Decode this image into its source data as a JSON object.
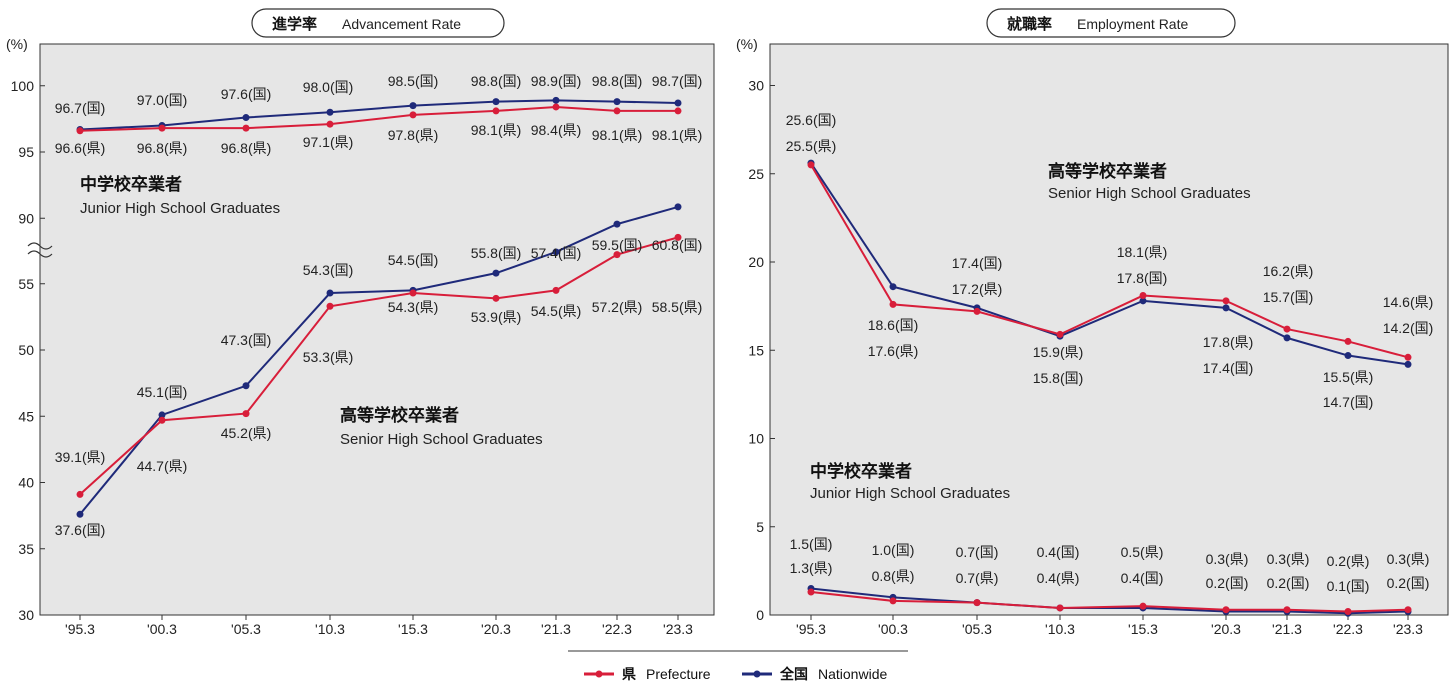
{
  "legend": {
    "prefecture": {
      "jp": "県",
      "en": "Prefecture",
      "color": "#d81e3a"
    },
    "nationwide": {
      "jp": "全国",
      "en": "Nationwide",
      "color": "#1f2a7a"
    }
  },
  "chart_data": [
    {
      "type": "line",
      "title": "進学率",
      "subtitle": "Advancement Rate",
      "unit": "(%)",
      "x": [
        "'95.3",
        "'00.3",
        "'05.3",
        "'10.3",
        "'15.3",
        "'20.3",
        "'21.3",
        "'22.3",
        "'23.3"
      ],
      "y_ticks": [
        30,
        35,
        40,
        45,
        50,
        55,
        90,
        95,
        100
      ],
      "axis_break": "between 55 and 90",
      "groups": [
        {
          "label_jp": "中学校卒業者",
          "label_en": "Junior High School Graduates",
          "series": [
            {
              "name": "全国",
              "values": [
                96.7,
                97.0,
                97.6,
                98.0,
                98.5,
                98.8,
                98.9,
                98.8,
                98.7
              ]
            },
            {
              "name": "県",
              "values": [
                96.6,
                96.8,
                96.8,
                97.1,
                97.8,
                98.1,
                98.4,
                98.1,
                98.1
              ]
            }
          ]
        },
        {
          "label_jp": "高等学校卒業者",
          "label_en": "Senior High School Graduates",
          "series": [
            {
              "name": "全国",
              "values": [
                37.6,
                45.1,
                47.3,
                54.3,
                54.5,
                55.8,
                57.4,
                59.5,
                60.8
              ]
            },
            {
              "name": "県",
              "values": [
                39.1,
                44.7,
                45.2,
                53.3,
                54.3,
                53.9,
                54.5,
                57.2,
                58.5
              ]
            }
          ]
        }
      ],
      "labels": [
        {
          "t": "96.7(国)"
        },
        {
          "t": "97.0(国)"
        },
        {
          "t": "97.6(国)"
        },
        {
          "t": "98.0(国)"
        },
        {
          "t": "98.5(国)"
        },
        {
          "t": "98.8(国)"
        },
        {
          "t": "98.9(国)"
        },
        {
          "t": "98.8(国)"
        },
        {
          "t": "98.7(国)"
        },
        {
          "t": "96.6(県)"
        },
        {
          "t": "96.8(県)"
        },
        {
          "t": "96.8(県)"
        },
        {
          "t": "97.1(県)"
        },
        {
          "t": "97.8(県)"
        },
        {
          "t": "98.1(県)"
        },
        {
          "t": "98.4(県)"
        },
        {
          "t": "98.1(県)"
        },
        {
          "t": "98.1(県)"
        },
        {
          "t": "54.3(国)"
        },
        {
          "t": "54.5(国)"
        },
        {
          "t": "55.8(国)"
        },
        {
          "t": "57.4(国)"
        },
        {
          "t": "59.5(国)"
        },
        {
          "t": "60.8(国)"
        },
        {
          "t": "54.3(県)"
        },
        {
          "t": "53.9(県)"
        },
        {
          "t": "54.5(県)"
        },
        {
          "t": "57.2(県)"
        },
        {
          "t": "58.5(県)"
        },
        {
          "t": "47.3(国)"
        },
        {
          "t": "53.3(県)"
        },
        {
          "t": "45.1(国)"
        },
        {
          "t": "45.2(県)"
        },
        {
          "t": "39.1(県)"
        },
        {
          "t": "44.7(県)"
        },
        {
          "t": "37.6(国)"
        }
      ]
    },
    {
      "type": "line",
      "title": "就職率",
      "subtitle": "Employment Rate",
      "unit": "(%)",
      "x": [
        "'95.3",
        "'00.3",
        "'05.3",
        "'10.3",
        "'15.3",
        "'20.3",
        "'21.3",
        "'22.3",
        "'23.3"
      ],
      "ylim": [
        0,
        30
      ],
      "y_ticks": [
        0,
        5,
        10,
        15,
        20,
        25,
        30
      ],
      "groups": [
        {
          "label_jp": "高等学校卒業者",
          "label_en": "Senior High School Graduates",
          "series": [
            {
              "name": "全国",
              "values": [
                25.6,
                18.6,
                17.4,
                15.8,
                17.8,
                17.4,
                15.7,
                14.7,
                14.2
              ]
            },
            {
              "name": "県",
              "values": [
                25.5,
                17.6,
                17.2,
                15.9,
                18.1,
                17.8,
                16.2,
                15.5,
                14.6
              ]
            }
          ]
        },
        {
          "label_jp": "中学校卒業者",
          "label_en": "Junior High School Graduates",
          "series": [
            {
              "name": "全国",
              "values": [
                1.5,
                1.0,
                0.7,
                0.4,
                0.4,
                0.2,
                0.2,
                0.1,
                0.2
              ]
            },
            {
              "name": "県",
              "values": [
                1.3,
                0.8,
                0.7,
                0.4,
                0.5,
                0.3,
                0.3,
                0.2,
                0.3
              ]
            }
          ]
        }
      ],
      "labels": [
        {
          "t": "25.6(国)"
        },
        {
          "t": "25.5(県)"
        },
        {
          "t": "18.6(国)"
        },
        {
          "t": "17.6(県)"
        },
        {
          "t": "17.4(国)"
        },
        {
          "t": "17.2(県)"
        },
        {
          "t": "15.9(県)"
        },
        {
          "t": "15.8(国)"
        },
        {
          "t": "18.1(県)"
        },
        {
          "t": "17.8(国)"
        },
        {
          "t": "17.8(県)"
        },
        {
          "t": "17.4(国)"
        },
        {
          "t": "16.2(県)"
        },
        {
          "t": "15.7(国)"
        },
        {
          "t": "15.5(県)"
        },
        {
          "t": "14.7(国)"
        },
        {
          "t": "14.6(県)"
        },
        {
          "t": "14.2(国)"
        },
        {
          "t": "1.5(国)"
        },
        {
          "t": "1.3(県)"
        },
        {
          "t": "1.0(国)"
        },
        {
          "t": "0.8(県)"
        },
        {
          "t": "0.7(国)"
        },
        {
          "t": "0.7(県)"
        },
        {
          "t": "0.4(国)"
        },
        {
          "t": "0.4(県)"
        },
        {
          "t": "0.5(県)"
        },
        {
          "t": "0.4(国)"
        },
        {
          "t": "0.3(県)"
        },
        {
          "t": "0.2(国)"
        },
        {
          "t": "0.3(県)"
        },
        {
          "t": "0.2(国)"
        },
        {
          "t": "0.2(県)"
        },
        {
          "t": "0.1(国)"
        },
        {
          "t": "0.3(県)"
        },
        {
          "t": "0.2(国)"
        }
      ]
    }
  ]
}
